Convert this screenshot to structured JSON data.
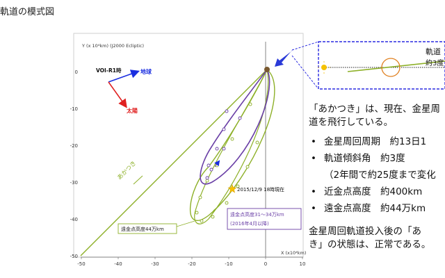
{
  "page": {
    "title": "軌道の模式図"
  },
  "chart": {
    "y_axis_label": "Y (x 10⁴km)  (J2000 Ecliptic)",
    "x_axis_label": "X (x10⁴km)",
    "x_ticks": [
      "-50",
      "-40",
      "-30",
      "-20",
      "-10",
      "0",
      "10"
    ],
    "y_ticks": [
      "0",
      "-10",
      "-20",
      "-30",
      "-40",
      "-50"
    ],
    "voi_label": "VOI-R1時",
    "earth_label": "地球",
    "sun_label": "太陽",
    "akatsuki_label": "あかつき",
    "current_label": "2015/12/9 18時現在",
    "apoapsis_current_label": "遠金点高度44万km",
    "apoapsis_future_label": "遠金点高度31～34万km",
    "apoapsis_future_sub": "(2016年4月以降)",
    "inset_title": "軌道",
    "inset_sub": "約3度",
    "colors": {
      "orbit_green": "#8db028",
      "orbit_purple": "#6a3fa6",
      "earth_arrow": "#1a2ee0",
      "sun_arrow": "#e02020",
      "inset_border": "#2a2ae0",
      "star": "#f5c200"
    }
  },
  "text_panel": {
    "lead_line1": "「あかつき」は、現在、金星周",
    "lead_line2": "道を飛行している。",
    "items": [
      "金星周回周期　約13日1",
      "軌道傾斜角　約3度"
    ],
    "subnote": "（2年間で約25度まで変化",
    "items2": [
      "近金点高度　約400km",
      "遠金点高度　約44万km"
    ],
    "closing_line1": "金星周回軌道投入後の「あ",
    "closing_line2": "き」の状態は、正常である。"
  }
}
